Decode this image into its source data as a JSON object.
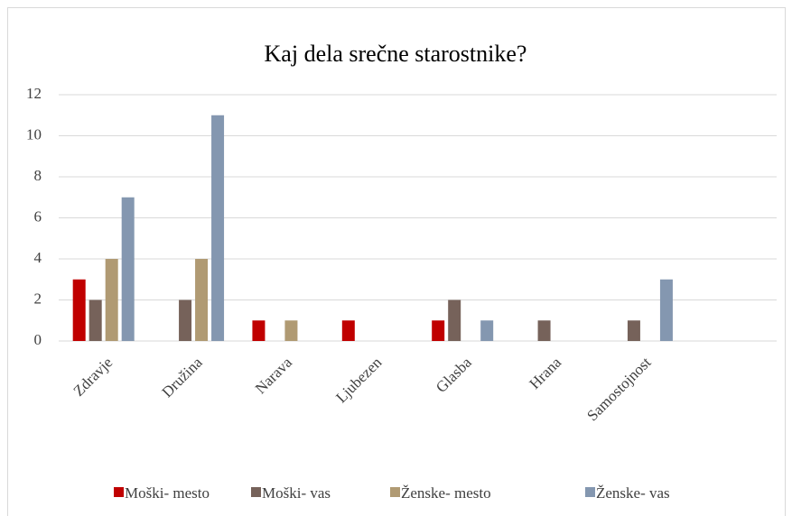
{
  "chart_data": {
    "type": "bar",
    "title": "Kaj dela srečne starostnike?",
    "categories": [
      "Zdravje",
      "Družina",
      "Narava",
      "Ljubezen",
      "Glasba",
      "Hrana",
      "Samostojnost",
      null
    ],
    "series": [
      {
        "name": "Moški- mesto",
        "color": "#c00000",
        "values": [
          3,
          null,
          1,
          1,
          1,
          null,
          null,
          null
        ]
      },
      {
        "name": "Moški- vas",
        "color": "#76625a",
        "values": [
          2,
          2,
          null,
          null,
          2,
          1,
          1,
          null
        ]
      },
      {
        "name": "Ženske- mesto",
        "color": "#b09a73",
        "values": [
          4,
          4,
          1,
          null,
          null,
          null,
          null,
          null
        ]
      },
      {
        "name": "Ženske- vas",
        "color": "#8497b0",
        "values": [
          7,
          11,
          null,
          null,
          1,
          null,
          3,
          null
        ]
      }
    ],
    "ylim": [
      0,
      12
    ],
    "yticks": [
      0,
      2,
      4,
      6,
      8,
      10,
      12
    ],
    "grid": true,
    "legend": "bottom"
  }
}
